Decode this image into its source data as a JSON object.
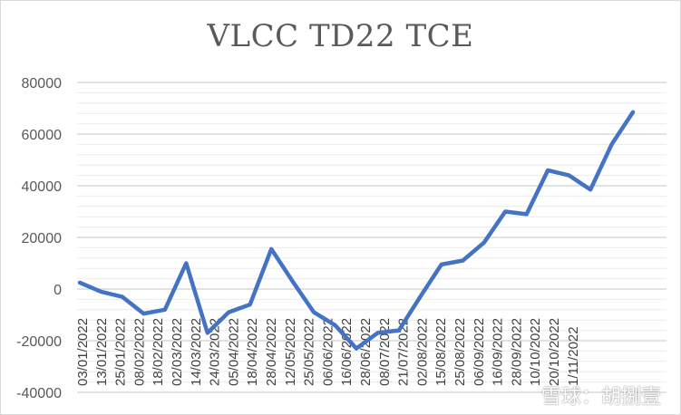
{
  "chart_data": {
    "type": "line",
    "title": "VLCC TD22 TCE",
    "xlabel": "",
    "ylabel": "",
    "ylim": [
      -40000,
      80000
    ],
    "yticks": [
      80000,
      60000,
      40000,
      20000,
      0,
      -20000,
      -40000
    ],
    "grid": true,
    "legend": "none",
    "categories": [
      "03/01/2022",
      "13/01/2022",
      "25/01/2022",
      "08/02/2022",
      "18/02/2022",
      "02/03/2022",
      "14/03/2022",
      "24/03/2022",
      "05/04/2022",
      "18/04/2022",
      "28/04/2022",
      "12/05/2022",
      "25/05/2022",
      "06/06/2022",
      "16/06/2022",
      "28/06/2022",
      "08/07/2022",
      "21/07/2022",
      "02/08/2022",
      "15/08/2022",
      "25/08/2022",
      "06/09/2022",
      "16/09/2022",
      "28/09/2022",
      "10/10/2022",
      "20/10/2022",
      "1/11/2022"
    ],
    "series": [
      {
        "name": "VLCC TD22 TCE",
        "color": "#4472c4",
        "values": [
          2500,
          -1000,
          -3000,
          -9500,
          -8000,
          10000,
          -17000,
          -9000,
          -6000,
          15500,
          3000,
          -9000,
          -14000,
          -23000,
          -17000,
          -16000,
          -3000,
          9500,
          11000,
          18000,
          30000,
          29000,
          46000,
          44000,
          38500,
          56000,
          68500
        ]
      }
    ]
  },
  "watermark": "雪球：胡捌壹"
}
